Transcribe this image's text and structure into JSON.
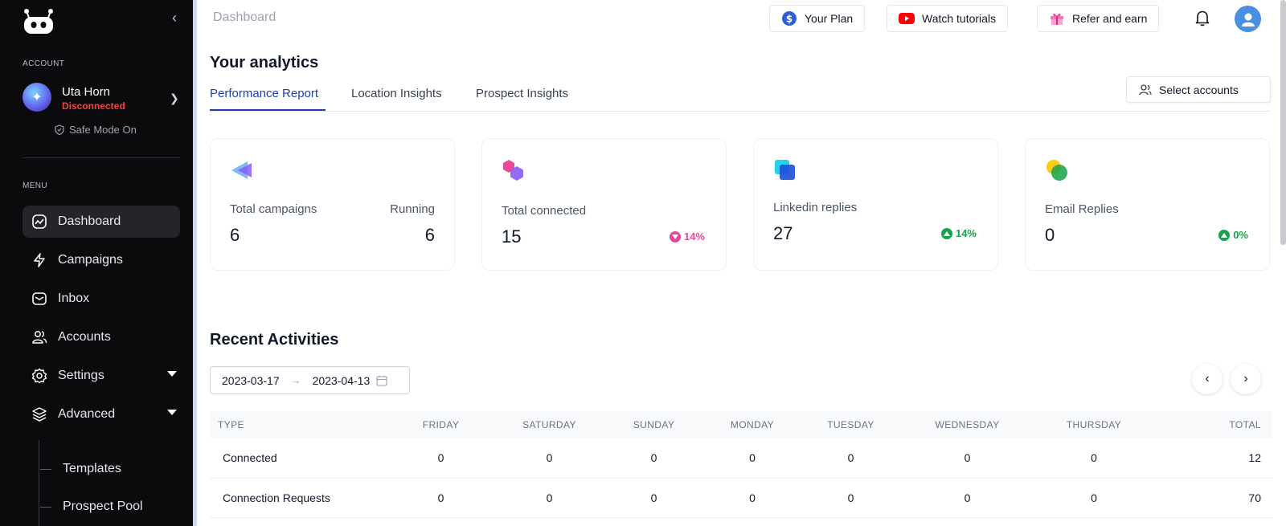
{
  "sidebar": {
    "account_label": "ACCOUNT",
    "account_name": "Uta Horn",
    "account_status": "Disconnected",
    "safe_mode": "Safe Mode On",
    "menu_label": "MENU",
    "items": [
      {
        "label": "Dashboard",
        "icon": "dashboard-icon",
        "active": true
      },
      {
        "label": "Campaigns",
        "icon": "lightning-icon"
      },
      {
        "label": "Inbox",
        "icon": "inbox-icon"
      },
      {
        "label": "Accounts",
        "icon": "users-icon"
      },
      {
        "label": "Settings",
        "icon": "gear-icon"
      },
      {
        "label": "Advanced",
        "icon": "layers-icon"
      }
    ],
    "sub_items": [
      {
        "label": "Templates"
      },
      {
        "label": "Prospect Pool"
      }
    ]
  },
  "header": {
    "breadcrumb": "Dashboard",
    "your_plan": "Your Plan",
    "watch_tutorials": "Watch tutorials",
    "refer_earn": "Refer and earn"
  },
  "analytics": {
    "title": "Your analytics",
    "tabs": [
      "Performance Report",
      "Location Insights",
      "Prospect Insights"
    ],
    "select_accounts": "Select accounts",
    "cards": [
      {
        "label": "Total campaigns",
        "value": "6",
        "label2": "Running",
        "value2": "6"
      },
      {
        "label": "Total connected",
        "value": "15",
        "delta": "14%",
        "trend": "down"
      },
      {
        "label": "Linkedin replies",
        "value": "27",
        "delta": "14%",
        "trend": "up"
      },
      {
        "label": "Email Replies",
        "value": "0",
        "delta": "0%",
        "trend": "up"
      }
    ]
  },
  "recent": {
    "title": "Recent Activities",
    "date_start": "2023-03-17",
    "date_end": "2023-04-13",
    "columns": [
      "TYPE",
      "FRIDAY",
      "SATURDAY",
      "SUNDAY",
      "MONDAY",
      "TUESDAY",
      "WEDNESDAY",
      "THURSDAY",
      "TOTAL"
    ],
    "rows": [
      [
        "Connected",
        "0",
        "0",
        "0",
        "0",
        "0",
        "0",
        "0",
        "12"
      ],
      [
        "Connection Requests",
        "0",
        "0",
        "0",
        "0",
        "0",
        "0",
        "0",
        "70"
      ]
    ]
  },
  "colors": {
    "sidebar_bg": "#0b0b0e",
    "accent": "#1e40af",
    "down": "#ec4899",
    "up": "#16a34a",
    "disconnected": "#ef4444"
  }
}
